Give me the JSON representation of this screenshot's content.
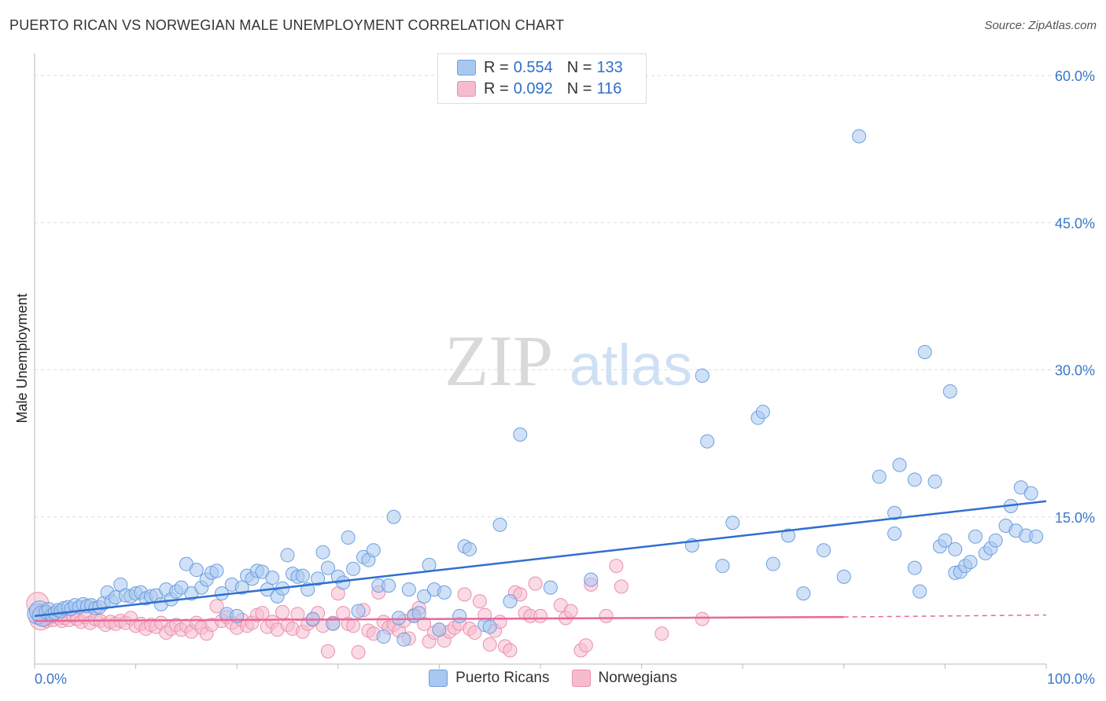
{
  "header": {
    "title": "PUERTO RICAN VS NORWEGIAN MALE UNEMPLOYMENT CORRELATION CHART",
    "source": "Source: ZipAtlas.com"
  },
  "watermark": {
    "zip": "ZIP",
    "atlas": "atlas"
  },
  "legend_top": {
    "rows": [
      {
        "r_label": "R = ",
        "r_value": "0.554",
        "n_label": "N = ",
        "n_value": "133"
      },
      {
        "r_label": "R = ",
        "r_value": "0.092",
        "n_label": "N = ",
        "n_value": "116"
      }
    ]
  },
  "chart_data": {
    "type": "scatter",
    "title": "PUERTO RICAN VS NORWEGIAN MALE UNEMPLOYMENT CORRELATION CHART",
    "xlabel": "",
    "ylabel": "Male Unemployment",
    "xlim": [
      0,
      100
    ],
    "ylim": [
      0,
      63
    ],
    "x_tick_labels": [
      "0.0%",
      "100.0%"
    ],
    "y_ticks": [
      15,
      30,
      45,
      60
    ],
    "y_tick_labels": [
      "15.0%",
      "30.0%",
      "45.0%",
      "60.0%"
    ],
    "grid": true,
    "legend_position": "bottom",
    "colors": {
      "puerto_ricans_fill": "#a9c8f0",
      "puerto_ricans_stroke": "#6d9fe0",
      "puerto_ricans_line": "#2f6fd0",
      "norwegians_fill": "#f6bccd",
      "norwegians_stroke": "#ec8fab",
      "norwegians_line": "#e8679a",
      "axis_label": "#3a78c8",
      "grid": "#dddddd"
    },
    "series": [
      {
        "name": "Puerto Ricans",
        "trend": {
          "x": [
            0,
            100
          ],
          "y": [
            4.9,
            16.6
          ]
        },
        "points": [
          [
            0.3,
            5.1
          ],
          [
            0.5,
            5.4
          ],
          [
            0.8,
            4.9
          ],
          [
            1.1,
            5.3
          ],
          [
            1.4,
            5.6
          ],
          [
            1.7,
            5.0
          ],
          [
            2.0,
            5.2
          ],
          [
            2.3,
            5.5
          ],
          [
            2.6,
            5.4
          ],
          [
            2.9,
            5.7
          ],
          [
            3.3,
            5.8
          ],
          [
            3.6,
            5.6
          ],
          [
            4.0,
            6.0
          ],
          [
            4.4,
            5.8
          ],
          [
            4.8,
            6.1
          ],
          [
            5.2,
            5.9
          ],
          [
            5.6,
            6.0
          ],
          [
            6.0,
            5.7
          ],
          [
            6.4,
            5.8
          ],
          [
            6.8,
            6.2
          ],
          [
            7.2,
            7.3
          ],
          [
            7.6,
            6.4
          ],
          [
            8.0,
            6.8
          ],
          [
            8.5,
            8.1
          ],
          [
            9.0,
            7.0
          ],
          [
            9.5,
            6.9
          ],
          [
            10.0,
            7.2
          ],
          [
            10.5,
            7.3
          ],
          [
            11.0,
            6.7
          ],
          [
            11.5,
            6.9
          ],
          [
            12.0,
            7.0
          ],
          [
            12.5,
            6.1
          ],
          [
            13.0,
            7.6
          ],
          [
            13.5,
            6.6
          ],
          [
            14.0,
            7.4
          ],
          [
            14.5,
            7.8
          ],
          [
            15.0,
            10.2
          ],
          [
            15.5,
            7.2
          ],
          [
            16.0,
            9.6
          ],
          [
            16.5,
            7.8
          ],
          [
            17.0,
            8.6
          ],
          [
            17.5,
            9.3
          ],
          [
            18.0,
            9.5
          ],
          [
            18.5,
            7.2
          ],
          [
            19.0,
            5.1
          ],
          [
            19.5,
            8.1
          ],
          [
            20.0,
            4.9
          ],
          [
            20.5,
            7.8
          ],
          [
            21.0,
            9.0
          ],
          [
            21.5,
            8.7
          ],
          [
            22.0,
            9.5
          ],
          [
            22.5,
            9.4
          ],
          [
            23.0,
            7.6
          ],
          [
            23.5,
            8.8
          ],
          [
            24.0,
            6.9
          ],
          [
            24.5,
            7.7
          ],
          [
            25.0,
            11.1
          ],
          [
            25.5,
            9.2
          ],
          [
            26.0,
            8.9
          ],
          [
            26.5,
            9.0
          ],
          [
            27.0,
            7.6
          ],
          [
            27.5,
            4.6
          ],
          [
            28.0,
            8.7
          ],
          [
            28.5,
            11.4
          ],
          [
            29.0,
            9.8
          ],
          [
            29.5,
            4.1
          ],
          [
            30.0,
            8.9
          ],
          [
            30.5,
            8.3
          ],
          [
            31.0,
            12.9
          ],
          [
            31.5,
            9.7
          ],
          [
            32.0,
            5.4
          ],
          [
            32.5,
            10.9
          ],
          [
            33.0,
            10.6
          ],
          [
            33.5,
            11.6
          ],
          [
            34.0,
            8.0
          ],
          [
            34.5,
            2.8
          ],
          [
            35.0,
            8.0
          ],
          [
            35.5,
            15.0
          ],
          [
            36.0,
            4.7
          ],
          [
            36.5,
            2.5
          ],
          [
            37.0,
            7.6
          ],
          [
            37.5,
            4.9
          ],
          [
            38.0,
            5.2
          ],
          [
            38.5,
            6.9
          ],
          [
            39.0,
            10.1
          ],
          [
            39.5,
            7.6
          ],
          [
            40.0,
            3.5
          ],
          [
            40.5,
            7.3
          ],
          [
            42.0,
            4.9
          ],
          [
            42.5,
            12.0
          ],
          [
            43.0,
            11.7
          ],
          [
            44.5,
            4.0
          ],
          [
            45.0,
            3.8
          ],
          [
            46.0,
            14.2
          ],
          [
            47.0,
            6.4
          ],
          [
            48.0,
            23.4
          ],
          [
            51.0,
            7.8
          ],
          [
            55.0,
            8.6
          ],
          [
            65.0,
            12.1
          ],
          [
            66.0,
            29.4
          ],
          [
            66.5,
            22.7
          ],
          [
            68.0,
            10.0
          ],
          [
            69.0,
            14.4
          ],
          [
            71.5,
            25.1
          ],
          [
            72.0,
            25.7
          ],
          [
            73.0,
            10.2
          ],
          [
            74.5,
            13.1
          ],
          [
            76.0,
            7.2
          ],
          [
            78.0,
            11.6
          ],
          [
            80.0,
            8.9
          ],
          [
            81.5,
            53.8
          ],
          [
            83.5,
            19.1
          ],
          [
            85.0,
            13.3
          ],
          [
            85.0,
            15.4
          ],
          [
            85.5,
            20.3
          ],
          [
            87.0,
            9.8
          ],
          [
            87.0,
            18.8
          ],
          [
            87.5,
            7.4
          ],
          [
            88.0,
            31.8
          ],
          [
            89.0,
            18.6
          ],
          [
            89.5,
            12.0
          ],
          [
            90.0,
            12.6
          ],
          [
            90.5,
            27.8
          ],
          [
            91.0,
            11.7
          ],
          [
            91.0,
            9.3
          ],
          [
            91.5,
            9.4
          ],
          [
            92.0,
            10.0
          ],
          [
            92.5,
            10.4
          ],
          [
            93.0,
            13.0
          ],
          [
            94.0,
            11.3
          ],
          [
            94.5,
            11.8
          ],
          [
            95.0,
            12.6
          ],
          [
            96.0,
            14.1
          ],
          [
            96.5,
            16.1
          ],
          [
            97.0,
            13.6
          ],
          [
            97.5,
            18.0
          ],
          [
            98.0,
            13.1
          ],
          [
            98.5,
            17.4
          ],
          [
            99.0,
            13.0
          ]
        ]
      },
      {
        "name": "Norwegians",
        "trend": {
          "x": [
            0,
            80
          ],
          "y": [
            4.4,
            4.8
          ]
        },
        "trend_dashed": {
          "x": [
            80,
            100
          ],
          "y": [
            4.8,
            5.0
          ]
        },
        "points": [
          [
            0.3,
            6.2
          ],
          [
            0.6,
            4.6
          ],
          [
            0.9,
            5.0
          ],
          [
            1.2,
            4.4
          ],
          [
            1.5,
            4.8
          ],
          [
            1.8,
            4.5
          ],
          [
            2.1,
            4.9
          ],
          [
            2.4,
            4.7
          ],
          [
            2.7,
            4.4
          ],
          [
            3.0,
            4.7
          ],
          [
            3.4,
            4.5
          ],
          [
            3.8,
            4.9
          ],
          [
            4.2,
            4.6
          ],
          [
            4.6,
            4.3
          ],
          [
            5.0,
            4.8
          ],
          [
            5.5,
            4.2
          ],
          [
            6.0,
            4.6
          ],
          [
            6.5,
            4.4
          ],
          [
            7.0,
            4.0
          ],
          [
            7.5,
            4.3
          ],
          [
            8.0,
            4.1
          ],
          [
            8.5,
            4.4
          ],
          [
            9.0,
            4.2
          ],
          [
            9.5,
            4.7
          ],
          [
            10.0,
            3.9
          ],
          [
            10.5,
            4.1
          ],
          [
            11.0,
            3.6
          ],
          [
            11.5,
            4.0
          ],
          [
            12.0,
            3.8
          ],
          [
            12.5,
            4.2
          ],
          [
            13.0,
            3.2
          ],
          [
            13.5,
            3.6
          ],
          [
            14.0,
            4.0
          ],
          [
            14.5,
            3.5
          ],
          [
            15.0,
            3.9
          ],
          [
            15.5,
            3.3
          ],
          [
            16.0,
            4.2
          ],
          [
            16.5,
            3.7
          ],
          [
            17.0,
            3.1
          ],
          [
            17.5,
            4.0
          ],
          [
            18.0,
            5.9
          ],
          [
            18.5,
            4.4
          ],
          [
            19.0,
            4.8
          ],
          [
            19.5,
            4.2
          ],
          [
            20.0,
            3.7
          ],
          [
            20.5,
            4.5
          ],
          [
            21.0,
            3.9
          ],
          [
            21.5,
            4.2
          ],
          [
            22.0,
            5.0
          ],
          [
            22.5,
            5.2
          ],
          [
            23.0,
            3.8
          ],
          [
            23.5,
            4.3
          ],
          [
            24.0,
            3.5
          ],
          [
            24.5,
            5.3
          ],
          [
            25.0,
            4.0
          ],
          [
            25.5,
            3.6
          ],
          [
            26.0,
            5.1
          ],
          [
            26.5,
            3.3
          ],
          [
            27.0,
            4.1
          ],
          [
            27.5,
            4.5
          ],
          [
            28.0,
            5.2
          ],
          [
            28.5,
            3.9
          ],
          [
            29.0,
            1.3
          ],
          [
            29.5,
            4.2
          ],
          [
            30.0,
            7.2
          ],
          [
            30.5,
            5.2
          ],
          [
            31.0,
            4.1
          ],
          [
            31.5,
            3.9
          ],
          [
            32.0,
            1.2
          ],
          [
            32.5,
            5.5
          ],
          [
            33.0,
            3.4
          ],
          [
            33.5,
            3.1
          ],
          [
            34.0,
            7.3
          ],
          [
            34.5,
            4.3
          ],
          [
            35.0,
            3.7
          ],
          [
            35.5,
            4.0
          ],
          [
            36.0,
            3.4
          ],
          [
            36.5,
            4.4
          ],
          [
            37.0,
            2.6
          ],
          [
            37.5,
            5.0
          ],
          [
            38.0,
            5.7
          ],
          [
            38.5,
            4.1
          ],
          [
            39.0,
            2.3
          ],
          [
            39.5,
            3.2
          ],
          [
            40.0,
            3.5
          ],
          [
            40.5,
            2.4
          ],
          [
            41.0,
            3.3
          ],
          [
            41.5,
            3.7
          ],
          [
            42.0,
            4.1
          ],
          [
            42.5,
            7.1
          ],
          [
            43.0,
            3.6
          ],
          [
            43.5,
            3.2
          ],
          [
            44.0,
            6.4
          ],
          [
            44.5,
            5.0
          ],
          [
            45.0,
            2.0
          ],
          [
            45.5,
            3.4
          ],
          [
            46.0,
            4.3
          ],
          [
            46.5,
            1.8
          ],
          [
            47.0,
            1.4
          ],
          [
            47.5,
            7.3
          ],
          [
            48.0,
            7.1
          ],
          [
            48.5,
            5.2
          ],
          [
            49.0,
            4.9
          ],
          [
            49.5,
            8.2
          ],
          [
            50.0,
            4.9
          ],
          [
            52.0,
            6.0
          ],
          [
            52.5,
            4.7
          ],
          [
            53.0,
            5.4
          ],
          [
            54.0,
            1.4
          ],
          [
            54.5,
            1.9
          ],
          [
            55.0,
            8.1
          ],
          [
            56.5,
            4.9
          ],
          [
            57.5,
            10.0
          ],
          [
            58.0,
            7.9
          ],
          [
            62.0,
            3.1
          ],
          [
            66.0,
            4.6
          ]
        ]
      }
    ]
  }
}
